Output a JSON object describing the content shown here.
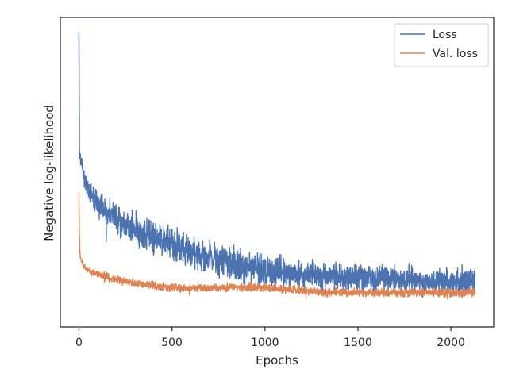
{
  "chart_data": {
    "type": "line",
    "title": "",
    "xlabel": "Epochs",
    "ylabel": "Negative log-likelihood",
    "xlim": [
      -100,
      2230
    ],
    "xticks": [
      0,
      500,
      1000,
      1500,
      2000
    ],
    "xtick_labels": [
      "0",
      "500",
      "1000",
      "1500",
      "2000"
    ],
    "y_ticks_shown": false,
    "grid": false,
    "legend": {
      "position": "upper right",
      "entries": [
        "Loss",
        "Val. loss"
      ]
    },
    "series": [
      {
        "name": "Loss",
        "color": "#4c72b0",
        "points": [
          [
            0,
            40
          ],
          [
            3,
            195
          ],
          [
            8,
            200
          ],
          [
            15,
            205
          ],
          [
            25,
            220
          ],
          [
            40,
            235
          ],
          [
            60,
            243
          ],
          [
            80,
            250
          ],
          [
            100,
            255
          ],
          [
            150,
            265
          ],
          [
            200,
            276
          ],
          [
            250,
            283
          ],
          [
            300,
            289
          ],
          [
            400,
            300
          ],
          [
            500,
            308
          ],
          [
            600,
            316
          ],
          [
            700,
            324
          ],
          [
            800,
            330
          ],
          [
            900,
            336
          ],
          [
            1000,
            340
          ],
          [
            1100,
            343
          ],
          [
            1200,
            345
          ],
          [
            1300,
            347
          ],
          [
            1400,
            349
          ],
          [
            1500,
            350
          ],
          [
            1600,
            351
          ],
          [
            1700,
            352
          ],
          [
            1800,
            353
          ],
          [
            1900,
            354
          ],
          [
            2000,
            355
          ],
          [
            2100,
            355
          ],
          [
            2130,
            355
          ]
        ],
        "noise_amplitude": [
          [
            0,
            10
          ],
          [
            100,
            16
          ],
          [
            300,
            20
          ],
          [
            600,
            22
          ],
          [
            900,
            20
          ],
          [
            1300,
            18
          ],
          [
            2130,
            16
          ]
        ]
      },
      {
        "name": "Val. loss",
        "color": "#dd8452",
        "points": [
          [
            0,
            243
          ],
          [
            2,
            290
          ],
          [
            5,
            318
          ],
          [
            10,
            326
          ],
          [
            20,
            333
          ],
          [
            40,
            339
          ],
          [
            60,
            342
          ],
          [
            100,
            345
          ],
          [
            150,
            349
          ],
          [
            200,
            352
          ],
          [
            300,
            357
          ],
          [
            400,
            360
          ],
          [
            500,
            362
          ],
          [
            600,
            363
          ],
          [
            700,
            363
          ],
          [
            800,
            362
          ],
          [
            900,
            362
          ],
          [
            1000,
            362
          ],
          [
            1100,
            364
          ],
          [
            1200,
            366
          ],
          [
            1300,
            368
          ],
          [
            1400,
            369
          ],
          [
            1500,
            369
          ],
          [
            1600,
            369
          ],
          [
            1700,
            369
          ],
          [
            1800,
            369
          ],
          [
            1900,
            369
          ],
          [
            2000,
            369
          ],
          [
            2130,
            369
          ]
        ],
        "noise_amplitude": [
          [
            0,
            3
          ],
          [
            100,
            5
          ],
          [
            2130,
            6
          ]
        ]
      }
    ]
  }
}
